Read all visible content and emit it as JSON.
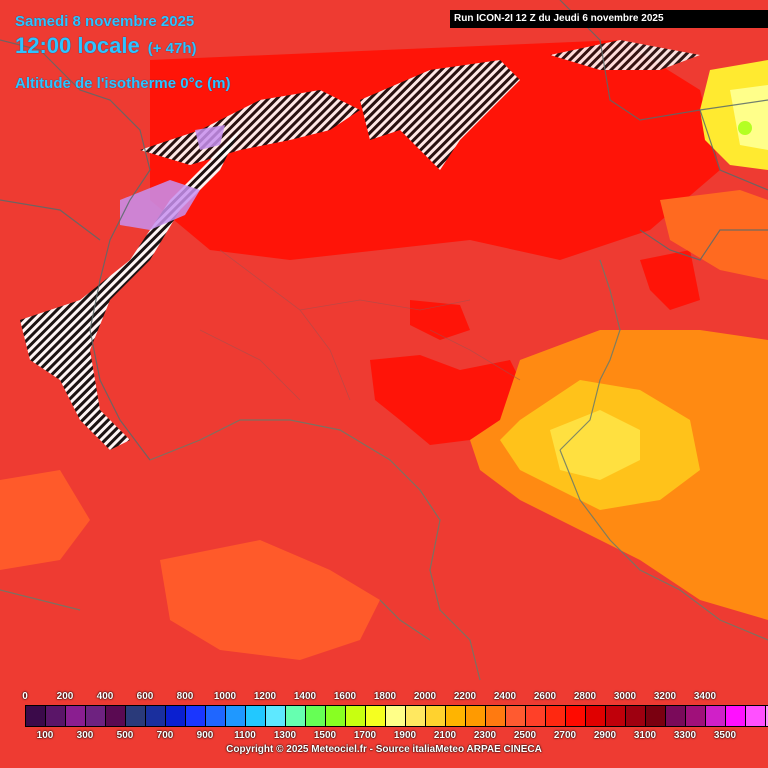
{
  "header": {
    "date": "Samedi 8 novembre 2025",
    "time": "12:00 locale",
    "lead": "(+ 47h)",
    "parameter": "Altitude de l'isotherme 0°c (m)"
  },
  "run_banner": "Run ICON-2I 12 Z du Jeudi 6 novembre 2025",
  "legend": {
    "top_labels": [
      "0",
      "200",
      "400",
      "600",
      "800",
      "1000",
      "1200",
      "1400",
      "1600",
      "1800",
      "2000",
      "2200",
      "2400",
      "2600",
      "2800",
      "3000",
      "3200",
      "3400"
    ],
    "bottom_labels": [
      "100",
      "300",
      "500",
      "700",
      "900",
      "1100",
      "1300",
      "1500",
      "1700",
      "1900",
      "2100",
      "2300",
      "2500",
      "2700",
      "2900",
      "3100",
      "3300",
      "3500"
    ],
    "colors": [
      "#3b0a4a",
      "#5a1568",
      "#8a1e90",
      "#6e2280",
      "#5a0a52",
      "#2a3a7a",
      "#1a2f9e",
      "#0a1fd0",
      "#1a36ff",
      "#1f66ff",
      "#1f98ff",
      "#22c8ff",
      "#5ee8ff",
      "#66ffb0",
      "#66ff55",
      "#88ff22",
      "#c8ff10",
      "#f5ff20",
      "#ffff88",
      "#ffe860",
      "#ffd22e",
      "#ffb400",
      "#ff9a00",
      "#ff7a10",
      "#ff5a30",
      "#ff4028",
      "#ff2810",
      "#ff0a00",
      "#e00000",
      "#c0000a",
      "#9e0010",
      "#7a0010",
      "#7a0a5a",
      "#a0107a",
      "#d020c8",
      "#ff10ff",
      "#ff50ff",
      "#ff90ff"
    ]
  },
  "copyright": "Copyright © 2025 Meteociel.fr - Source italiaMeteo ARPAE CINECA"
}
